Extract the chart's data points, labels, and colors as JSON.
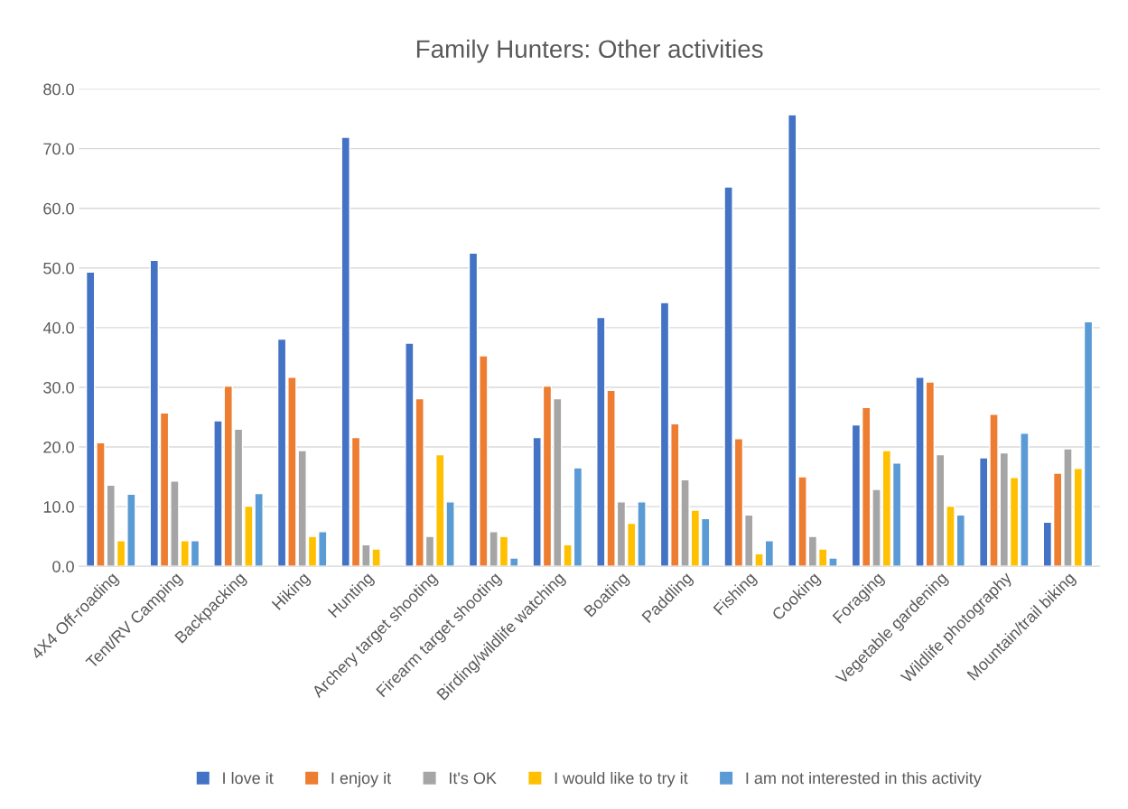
{
  "chart_data": {
    "type": "bar",
    "title": "Family Hunters: Other activities",
    "categories": [
      "4X4 Off-roading",
      "Tent/RV Camping",
      "Backpacking",
      "Hiking",
      "Hunting",
      "Archery target shooting",
      "Firearm target shooting",
      "Birding/wildlife watching",
      "Boating",
      "Paddling",
      "Fishing",
      "Cooking",
      "Foraging",
      "Vegetable gardening",
      "Wildlife photography",
      "Mountain/trail biking"
    ],
    "series": [
      {
        "name": "I love it",
        "color": "#4472c4",
        "values": [
          49.3,
          51.3,
          24.4,
          38.1,
          71.9,
          37.4,
          52.5,
          21.6,
          41.7,
          44.2,
          63.6,
          75.7,
          23.7,
          31.7,
          18.2,
          7.4
        ]
      },
      {
        "name": "I enjoy it",
        "color": "#ed7d31",
        "values": [
          20.7,
          25.7,
          30.2,
          31.7,
          21.6,
          28.1,
          35.3,
          30.2,
          29.5,
          23.9,
          21.4,
          15.0,
          26.6,
          30.9,
          25.5,
          15.6
        ]
      },
      {
        "name": "It's OK",
        "color": "#a5a5a5",
        "values": [
          13.6,
          14.3,
          23.0,
          19.4,
          3.6,
          5.0,
          5.8,
          28.1,
          10.8,
          14.5,
          8.6,
          5.0,
          12.9,
          18.7,
          19.0,
          19.7
        ]
      },
      {
        "name": "I would like to try it",
        "color": "#ffc000",
        "values": [
          4.3,
          4.3,
          10.1,
          5.0,
          2.9,
          18.7,
          5.0,
          3.6,
          7.2,
          9.4,
          2.1,
          2.9,
          19.4,
          10.1,
          14.9,
          16.4
        ]
      },
      {
        "name": "I am not interested in this activity",
        "color": "#5b9bd5",
        "values": [
          12.1,
          4.3,
          12.2,
          5.8,
          null,
          10.8,
          1.4,
          16.5,
          10.8,
          8.0,
          4.3,
          1.4,
          17.3,
          8.6,
          22.3,
          41.0
        ]
      }
    ],
    "ylim": [
      0,
      80
    ],
    "yticks": [
      {
        "value": 0,
        "label": "0.0"
      },
      {
        "value": 10,
        "label": "10.0"
      },
      {
        "value": 20,
        "label": "20.0"
      },
      {
        "value": 30,
        "label": "30.0"
      },
      {
        "value": 40,
        "label": "40.0"
      },
      {
        "value": 50,
        "label": "50.0"
      },
      {
        "value": 60,
        "label": "60.0"
      },
      {
        "value": 70,
        "label": "70.0"
      },
      {
        "value": 80,
        "label": "80.0"
      }
    ],
    "grid": "y",
    "legend": "bottom"
  }
}
